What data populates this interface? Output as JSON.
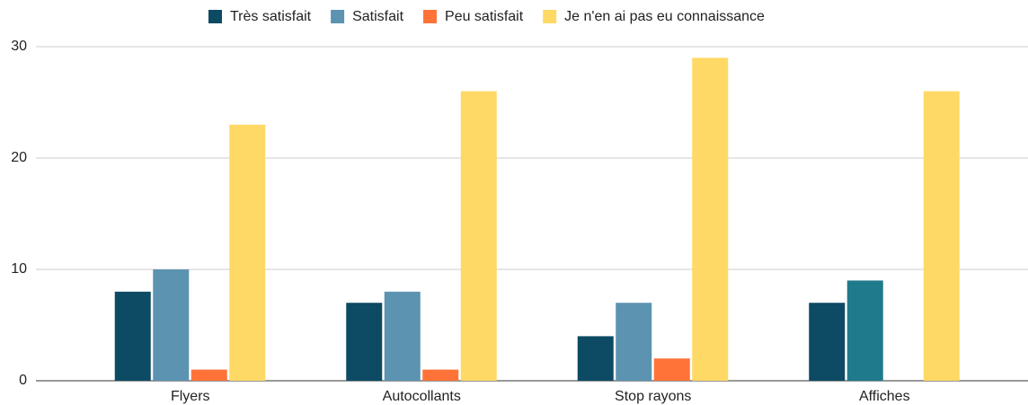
{
  "chart_data": {
    "type": "bar",
    "categories": [
      "Flyers",
      "Autocollants",
      "Stop rayons",
      "Affiches"
    ],
    "series": [
      {
        "name": "Très satisfait",
        "color": "#0d4a63",
        "values": [
          8,
          7,
          4,
          7
        ]
      },
      {
        "name": "Satisfait",
        "color": "#5b93b0",
        "colors": [
          "#5b93b0",
          "#5b93b0",
          "#5b93b0",
          "#1f7a8c"
        ],
        "values": [
          10,
          8,
          7,
          9
        ]
      },
      {
        "name": "Peu satisfait",
        "color": "#ff7338",
        "values": [
          1,
          1,
          2,
          0
        ]
      },
      {
        "name": "Je n'en ai pas eu connaissance",
        "color": "#fed966",
        "values": [
          23,
          26,
          29,
          26
        ]
      }
    ],
    "ylim": [
      0,
      30
    ],
    "yticks": [
      0,
      10,
      20,
      30
    ],
    "grid": true,
    "legend": "top"
  }
}
